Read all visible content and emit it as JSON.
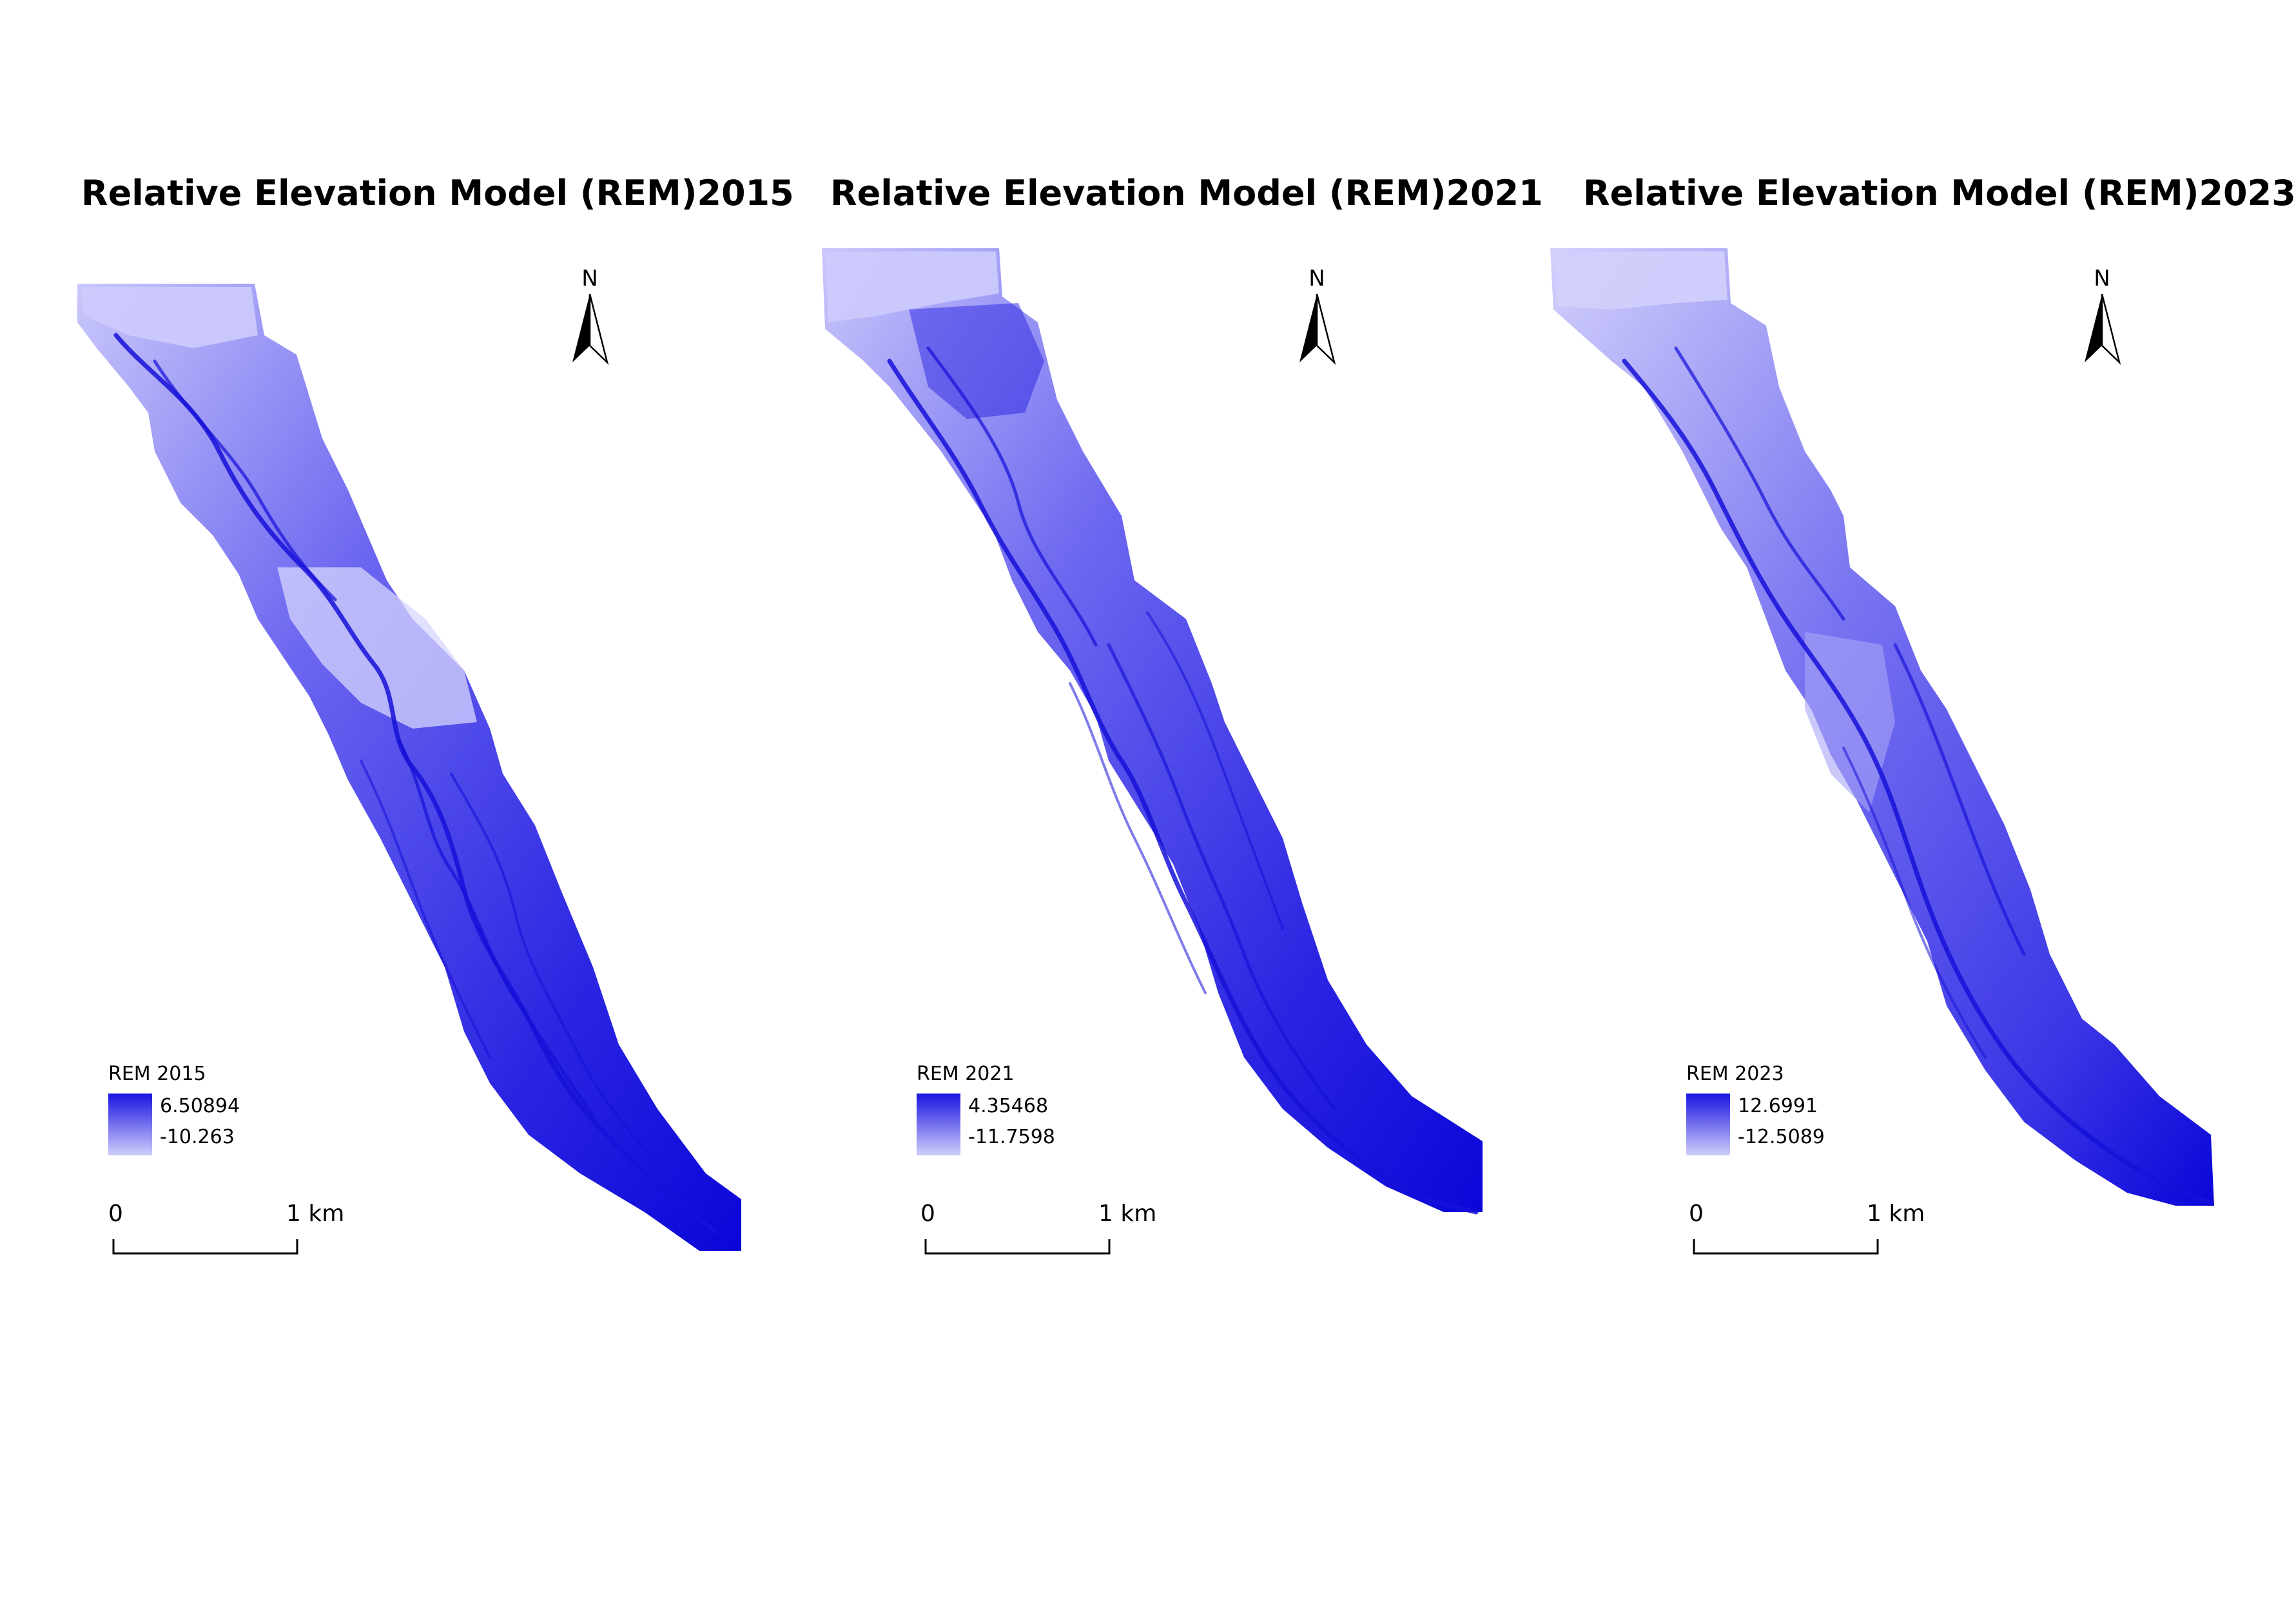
{
  "maps": [
    {
      "title": "Relative Elevation Model (REM)2015",
      "legend_title": "REM 2015",
      "max": "6.50894",
      "min": "-10.263"
    },
    {
      "title": "Relative Elevation Model (REM)2021",
      "legend_title": "REM 2021",
      "max": "4.35468",
      "min": "-11.7598"
    },
    {
      "title": "Relative Elevation Model (REM)2023",
      "legend_title": "REM 2023",
      "max": "12.6991",
      "min": "-12.5089"
    }
  ],
  "north_label": "N",
  "scale": {
    "zero": "0",
    "one": "1 km"
  },
  "colors": {
    "high": "#1a14e0",
    "low": "#cfcdfb",
    "deep": "#0a06d8"
  }
}
